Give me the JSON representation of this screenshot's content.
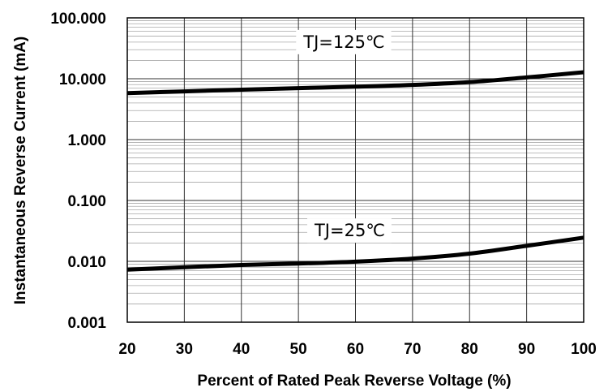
{
  "chart_data": {
    "type": "line",
    "title": "",
    "xlabel": "Percent of Rated Peak Reverse Voltage (%)",
    "ylabel": "Instantaneous Reverse Current (mA)",
    "xlim": [
      20,
      100
    ],
    "ylim": [
      0.001,
      100
    ],
    "yscale": "log",
    "grid": true,
    "xticks": [
      "20",
      "30",
      "40",
      "50",
      "60",
      "70",
      "80",
      "90",
      "100"
    ],
    "yticks": [
      "0.001",
      "0.010",
      "0.100",
      "1.000",
      "10.000",
      "100.000"
    ],
    "series": [
      {
        "name": "TJ=125℃",
        "x": [
          20,
          30,
          40,
          50,
          60,
          70,
          80,
          90,
          100
        ],
        "y": [
          5.8,
          6.2,
          6.6,
          7.0,
          7.4,
          7.9,
          8.8,
          10.5,
          12.8
        ]
      },
      {
        "name": "TJ=25℃",
        "x": [
          20,
          30,
          40,
          50,
          60,
          70,
          80,
          90,
          100
        ],
        "y": [
          0.0073,
          0.008,
          0.0087,
          0.0092,
          0.0099,
          0.0111,
          0.0134,
          0.018,
          0.0245
        ]
      }
    ],
    "annotations": [
      {
        "text": "TJ=125℃",
        "x": 58,
        "y": 40
      },
      {
        "text": "TJ=25℃",
        "x": 59,
        "y": 0.032
      }
    ]
  }
}
